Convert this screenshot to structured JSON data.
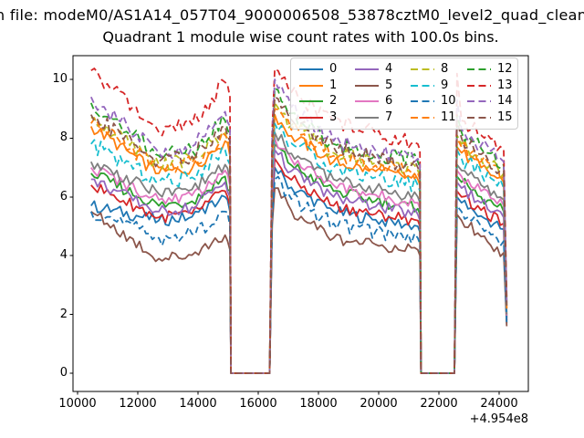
{
  "figure": {
    "suptitle": "n file: modeM0/AS1A14_057T04_9000006508_53878cztM0_level2_quad_clean",
    "title": "Quadrant 1 module wise count rates with 100.0s bins.",
    "x_offset_label": "+4.954e8"
  },
  "chart_data": {
    "type": "line",
    "title": "Quadrant 1 module wise count rates with 100.0s bins.",
    "suptitle_visible_text": "n file: modeM0/AS1A14_057T04_9000006508_53878cztM0_level2_quad_clean",
    "xlabel": "",
    "ylabel": "",
    "x_axis_offset_text": "+4.954e8",
    "xticks": [
      10000,
      12000,
      14000,
      16000,
      18000,
      20000,
      22000,
      24000
    ],
    "yticks": [
      0,
      2,
      4,
      6,
      8,
      10
    ],
    "xlim": [
      9850,
      25030
    ],
    "ylim": [
      -0.62,
      10.8
    ],
    "grid": false,
    "legend": {
      "position": "upper center-right inside axes",
      "ncol": 4,
      "order": "column-major"
    },
    "bins_seconds": 100.0,
    "zero_intervals_x": [
      [
        15095,
        16380
      ],
      [
        21405,
        22515
      ]
    ],
    "key_x": [
      10450,
      12700,
      14900,
      16550,
      18500,
      21300,
      22600,
      22750,
      24150,
      24250
    ],
    "key_x_roles": [
      "data-start",
      "dip",
      "pre-gap-spike",
      "peak-after-gap1",
      "mid-decay",
      "end-before-gap2",
      "spike-after-gap2",
      "settle-after-gap2",
      "end-of-data",
      "final-drop-value"
    ],
    "series": [
      {
        "label": "0",
        "color": "#1f77b4",
        "linestyle": "solid",
        "values": [
          5.7,
          5.2,
          6.0,
          7.0,
          5.5,
          5.0,
          6.0,
          5.8,
          4.9,
          1.7
        ]
      },
      {
        "label": "1",
        "color": "#ff7f0e",
        "linestyle": "solid",
        "values": [
          8.4,
          6.8,
          7.9,
          8.8,
          7.2,
          6.6,
          7.7,
          7.5,
          6.5,
          2.2
        ]
      },
      {
        "label": "2",
        "color": "#2ca02c",
        "linestyle": "solid",
        "values": [
          6.8,
          5.7,
          6.7,
          7.8,
          6.2,
          5.6,
          6.7,
          6.5,
          5.5,
          1.9
        ]
      },
      {
        "label": "3",
        "color": "#d62728",
        "linestyle": "solid",
        "values": [
          6.4,
          5.3,
          6.2,
          7.3,
          5.7,
          5.2,
          6.2,
          6.0,
          5.1,
          1.8
        ]
      },
      {
        "label": "4",
        "color": "#9467bd",
        "linestyle": "solid",
        "values": [
          6.6,
          5.5,
          6.5,
          7.6,
          6.0,
          5.4,
          6.5,
          6.3,
          5.3,
          1.85
        ]
      },
      {
        "label": "5",
        "color": "#8c564b",
        "linestyle": "solid",
        "values": [
          5.5,
          3.9,
          4.7,
          6.3,
          4.6,
          4.2,
          5.4,
          5.2,
          4.1,
          1.6
        ]
      },
      {
        "label": "6",
        "color": "#e377c2",
        "linestyle": "solid",
        "values": [
          7.0,
          5.9,
          6.9,
          8.0,
          6.4,
          5.8,
          6.9,
          6.7,
          5.7,
          1.95
        ]
      },
      {
        "label": "7",
        "color": "#7f7f7f",
        "linestyle": "solid",
        "values": [
          7.2,
          6.1,
          7.1,
          8.2,
          6.6,
          6.0,
          7.1,
          6.9,
          5.9,
          2.0
        ]
      },
      {
        "label": "8",
        "color": "#bcbd22",
        "linestyle": "dashed",
        "values": [
          8.7,
          7.1,
          8.2,
          9.2,
          7.5,
          6.9,
          8.1,
          7.8,
          6.8,
          2.3
        ]
      },
      {
        "label": "9",
        "color": "#17becf",
        "linestyle": "dashed",
        "values": [
          7.8,
          6.5,
          7.6,
          8.5,
          7.0,
          6.4,
          7.6,
          7.3,
          6.3,
          2.1
        ]
      },
      {
        "label": "10",
        "color": "#1f77b4",
        "linestyle": "dashed",
        "values": [
          5.5,
          4.6,
          5.5,
          6.6,
          5.1,
          4.6,
          5.7,
          5.5,
          4.5,
          1.7
        ]
      },
      {
        "label": "11",
        "color": "#ff7f0e",
        "linestyle": "dashed",
        "values": [
          8.5,
          7.0,
          8.1,
          9.0,
          7.4,
          6.8,
          8.0,
          7.7,
          6.7,
          2.2
        ]
      },
      {
        "label": "12",
        "color": "#2ca02c",
        "linestyle": "dashed",
        "values": [
          9.2,
          7.4,
          8.6,
          9.7,
          7.8,
          7.2,
          8.8,
          8.2,
          7.1,
          2.4
        ]
      },
      {
        "label": "13",
        "color": "#d62728",
        "linestyle": "dashed",
        "values": [
          10.3,
          8.2,
          9.9,
          10.35,
          8.6,
          7.8,
          10.2,
          8.6,
          7.6,
          2.6
        ]
      },
      {
        "label": "14",
        "color": "#9467bd",
        "linestyle": "dashed",
        "values": [
          9.4,
          7.5,
          8.9,
          10.0,
          7.9,
          7.3,
          9.3,
          8.3,
          7.2,
          2.4
        ]
      },
      {
        "label": "15",
        "color": "#8c564b",
        "linestyle": "dashed",
        "values": [
          8.8,
          7.2,
          8.4,
          9.4,
          7.7,
          7.0,
          8.6,
          8.0,
          6.9,
          2.3
        ]
      }
    ]
  }
}
